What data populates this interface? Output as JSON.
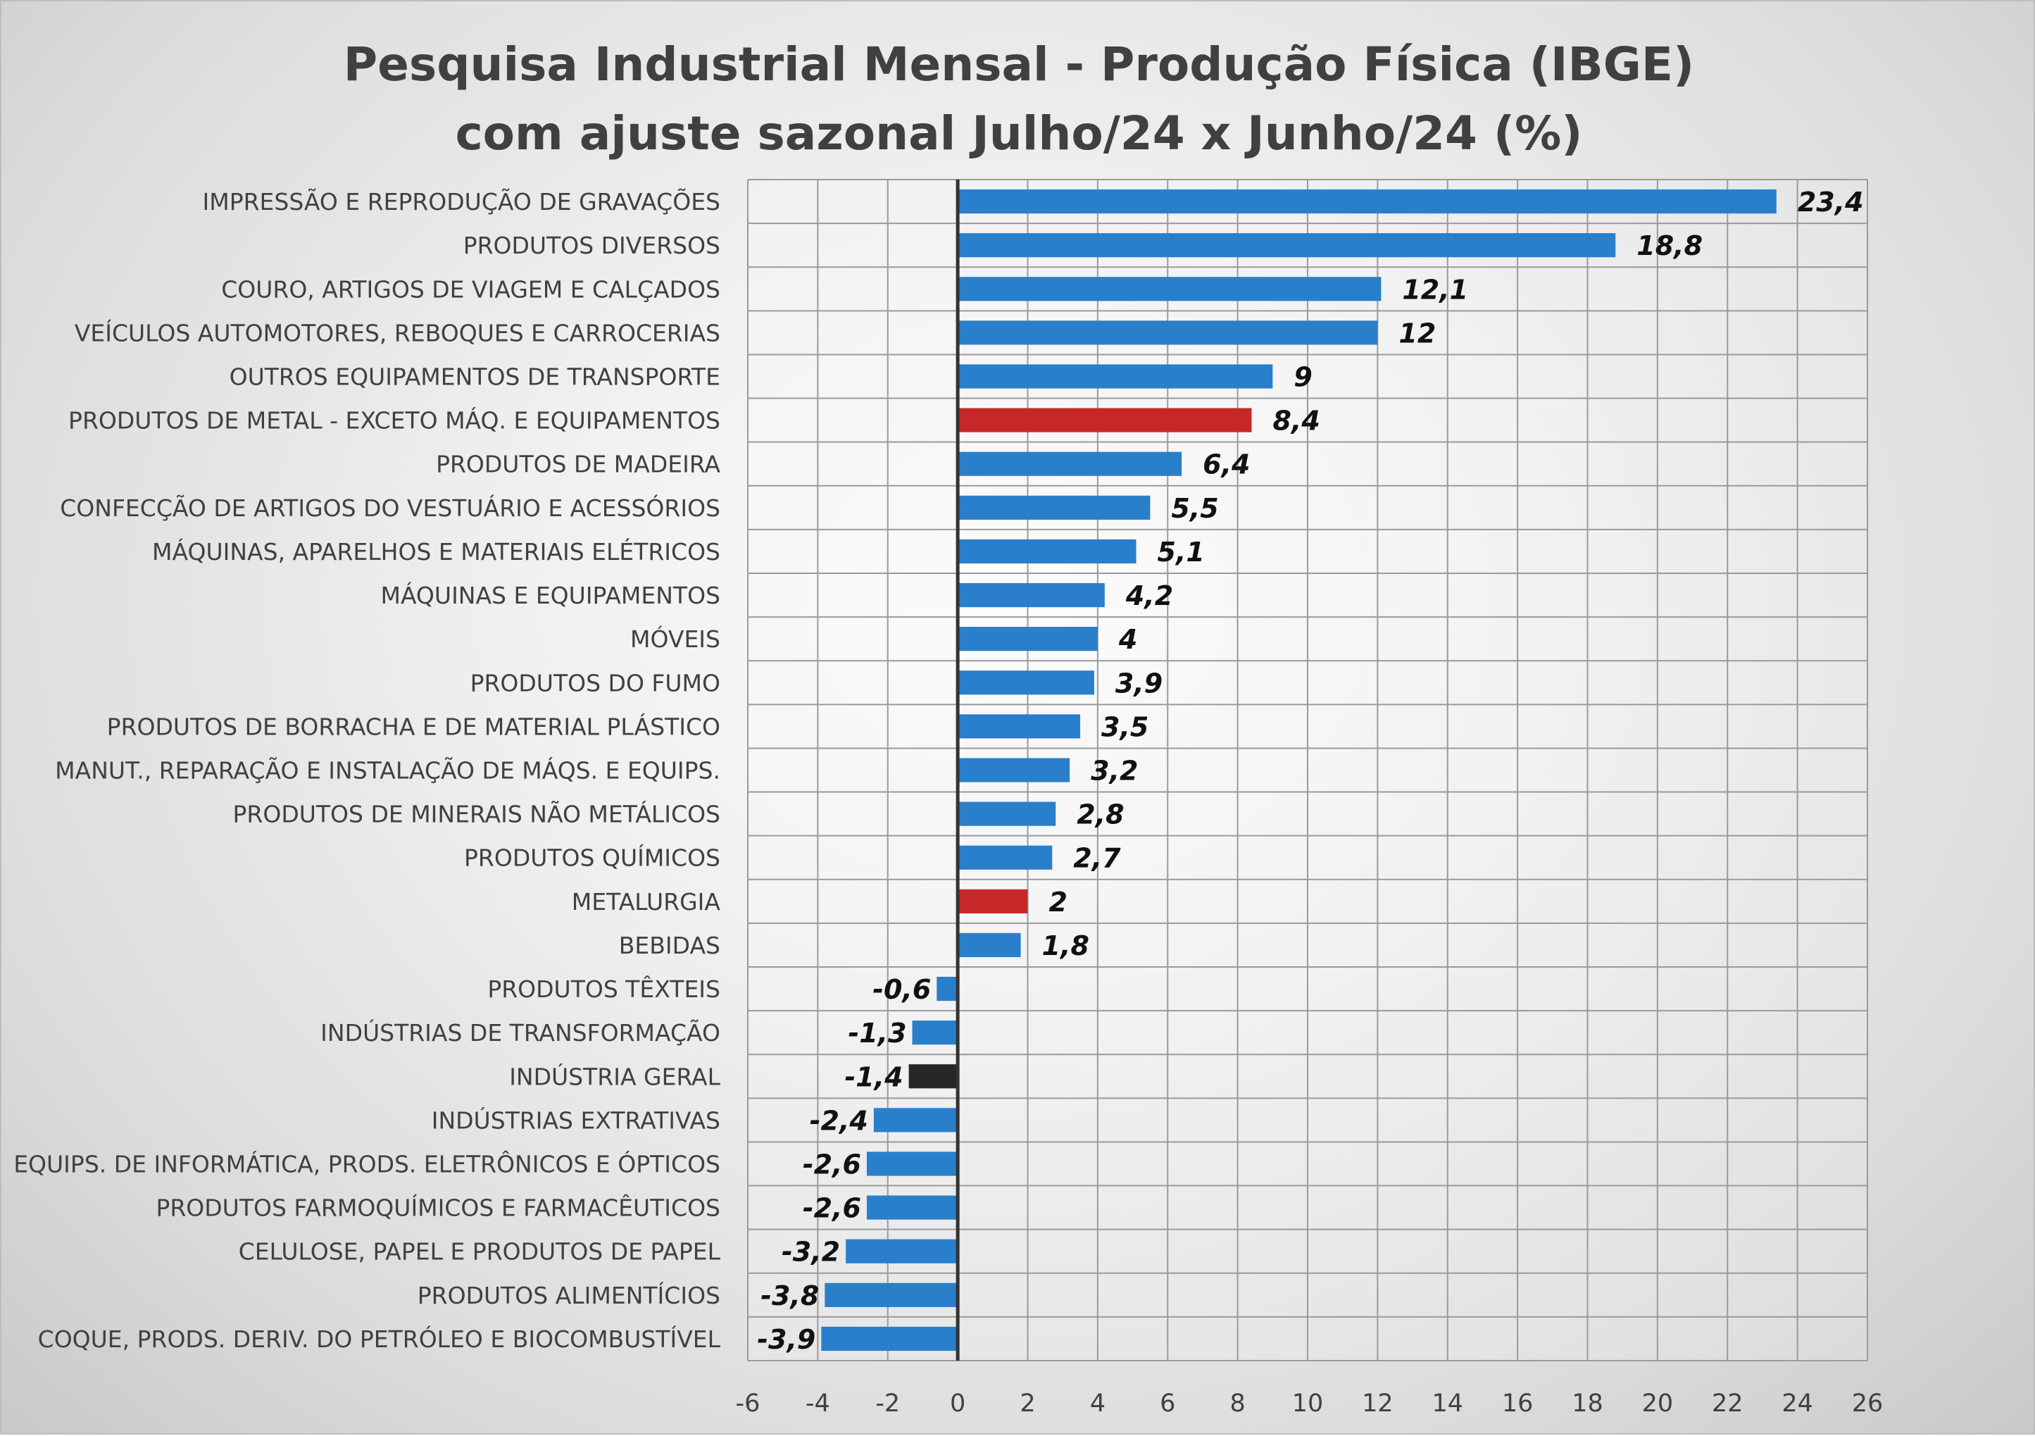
{
  "chart_data": {
    "type": "bar",
    "orientation": "horizontal",
    "title": "Pesquisa Industrial Mensal - Produção Física (IBGE)",
    "subtitle": "com ajuste sazonal Julho/24 x Junho/24 (%)",
    "xlabel": "",
    "ylabel": "",
    "xlim": [
      -6,
      26
    ],
    "x_ticks": [
      "-6",
      "-4",
      "-2",
      "0",
      "2",
      "4",
      "6",
      "8",
      "10",
      "12",
      "14",
      "16",
      "18",
      "20",
      "22",
      "24",
      "26"
    ],
    "grid": true,
    "categories": [
      "IMPRESSÃO E REPRODUÇÃO DE GRAVAÇÕES",
      "PRODUTOS DIVERSOS",
      "COURO, ARTIGOS DE VIAGEM E CALÇADOS",
      "VEÍCULOS AUTOMOTORES, REBOQUES E CARROCERIAS",
      "OUTROS EQUIPAMENTOS DE TRANSPORTE",
      "PRODUTOS DE METAL - EXCETO MÁQ. E EQUIPAMENTOS",
      "PRODUTOS DE MADEIRA",
      "CONFECÇÃO DE ARTIGOS DO VESTUÁRIO E ACESSÓRIOS",
      "MÁQUINAS, APARELHOS E MATERIAIS ELÉTRICOS",
      "MÁQUINAS E EQUIPAMENTOS",
      "MÓVEIS",
      "PRODUTOS DO FUMO",
      "PRODUTOS DE BORRACHA E DE MATERIAL PLÁSTICO",
      "MANUT., REPARAÇÃO E INSTALAÇÃO DE MÁQS. E EQUIPS.",
      "PRODUTOS DE MINERAIS NÃO METÁLICOS",
      "PRODUTOS QUÍMICOS",
      "METALURGIA",
      "BEBIDAS",
      "PRODUTOS TÊXTEIS",
      "INDÚSTRIAS DE TRANSFORMAÇÃO",
      "INDÚSTRIA GERAL",
      "INDÚSTRIAS EXTRATIVAS",
      "EQUIPS. DE INFORMÁTICA, PRODS. ELETRÔNICOS E ÓPTICOS",
      "PRODUTOS FARMOQUÍMICOS E FARMACÊUTICOS",
      "CELULOSE, PAPEL E PRODUTOS DE PAPEL",
      "PRODUTOS ALIMENTÍCIOS",
      "COQUE, PRODS. DERIV. DO PETRÓLEO E BIOCOMBUSTÍVEL"
    ],
    "values": [
      23.4,
      18.8,
      12.1,
      12,
      9,
      8.4,
      6.4,
      5.5,
      5.1,
      4.2,
      4,
      3.9,
      3.5,
      3.2,
      2.8,
      2.7,
      2,
      1.8,
      -0.6,
      -1.3,
      -1.4,
      -2.4,
      -2.6,
      -2.6,
      -3.2,
      -3.8,
      -3.9
    ],
    "value_labels": [
      "23,4",
      "18,8",
      "12,1",
      "12",
      "9",
      "8,4",
      "6,4",
      "5,5",
      "5,1",
      "4,2",
      "4",
      "3,9",
      "3,5",
      "3,2",
      "2,8",
      "2,7",
      "2",
      "1,8",
      "-0,6",
      "-1,3",
      "-1,4",
      "-2,4",
      "-2,6",
      "-2,6",
      "-3,2",
      "-3,8",
      "-3,9"
    ],
    "bar_colors": [
      "blue",
      "blue",
      "blue",
      "blue",
      "blue",
      "red",
      "blue",
      "blue",
      "blue",
      "blue",
      "blue",
      "blue",
      "blue",
      "blue",
      "blue",
      "blue",
      "red",
      "blue",
      "blue",
      "blue",
      "black",
      "blue",
      "blue",
      "blue",
      "blue",
      "blue",
      "blue"
    ],
    "colors": {
      "blue": "#2a7fca",
      "red": "#c62828",
      "black": "#262626",
      "zero_line": "#333333"
    }
  }
}
